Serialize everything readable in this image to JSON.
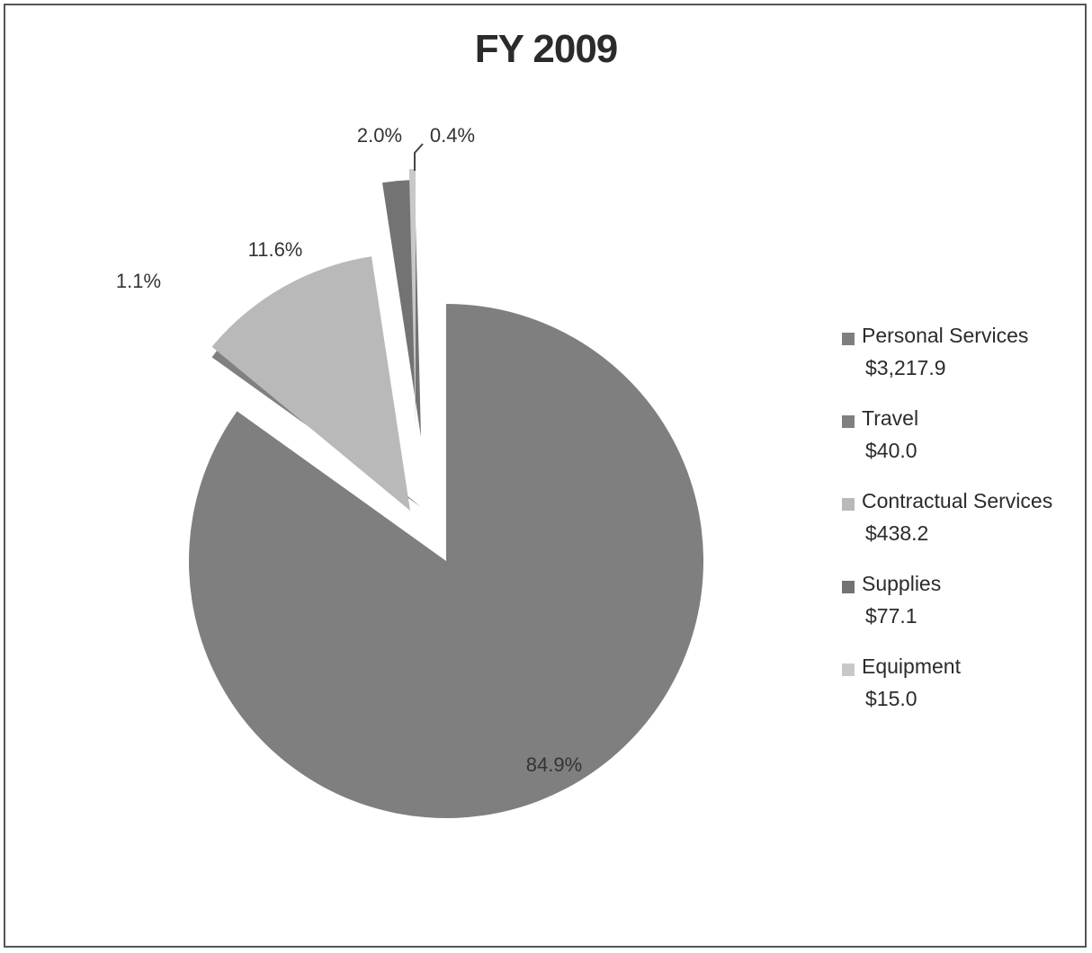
{
  "chart_data": {
    "type": "pie",
    "title": "FY 2009",
    "slices": [
      {
        "name": "Personal Services",
        "amount": "$3,217.9",
        "percent": 84.9,
        "label": "84.9%",
        "color": "#7f7f7f"
      },
      {
        "name": "Travel",
        "amount": "$40.0",
        "percent": 1.1,
        "label": "1.1%",
        "color": "#808080"
      },
      {
        "name": "Contractual Services",
        "amount": "$438.2",
        "percent": 11.6,
        "label": "11.6%",
        "color": "#b9b9b9"
      },
      {
        "name": "Supplies",
        "amount": "$77.1",
        "percent": 2.0,
        "label": "2.0%",
        "color": "#737373"
      },
      {
        "name": "Equipment",
        "amount": "$15.0",
        "percent": 0.4,
        "label": "0.4%",
        "color": "#c8c8c8"
      }
    ],
    "legend_position": "right"
  }
}
